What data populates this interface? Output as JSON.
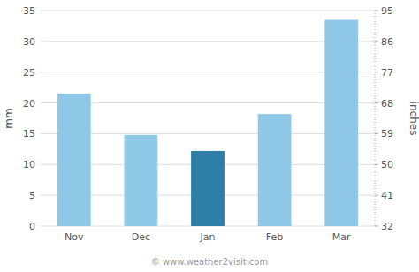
{
  "chart_data": {
    "type": "bar",
    "categories": [
      "Nov",
      "Dec",
      "Jan",
      "Feb",
      "Mar"
    ],
    "values": [
      21.5,
      14.8,
      12.2,
      18.2,
      33.5
    ],
    "colors": [
      "#90c8e8",
      "#90c8e8",
      "#2e7fa8",
      "#90c8e8",
      "#90c8e8"
    ],
    "ylabel": "mm",
    "y2label": "inches",
    "ylim": [
      0,
      35
    ],
    "yticks": [
      0,
      5,
      10,
      15,
      20,
      25,
      30,
      35
    ],
    "y2lim": [
      32,
      95
    ],
    "y2ticks": [
      32,
      41,
      50,
      59,
      68,
      77,
      86,
      95
    ],
    "grid": true,
    "annotations": [
      "© www.weather2visit.com"
    ]
  }
}
